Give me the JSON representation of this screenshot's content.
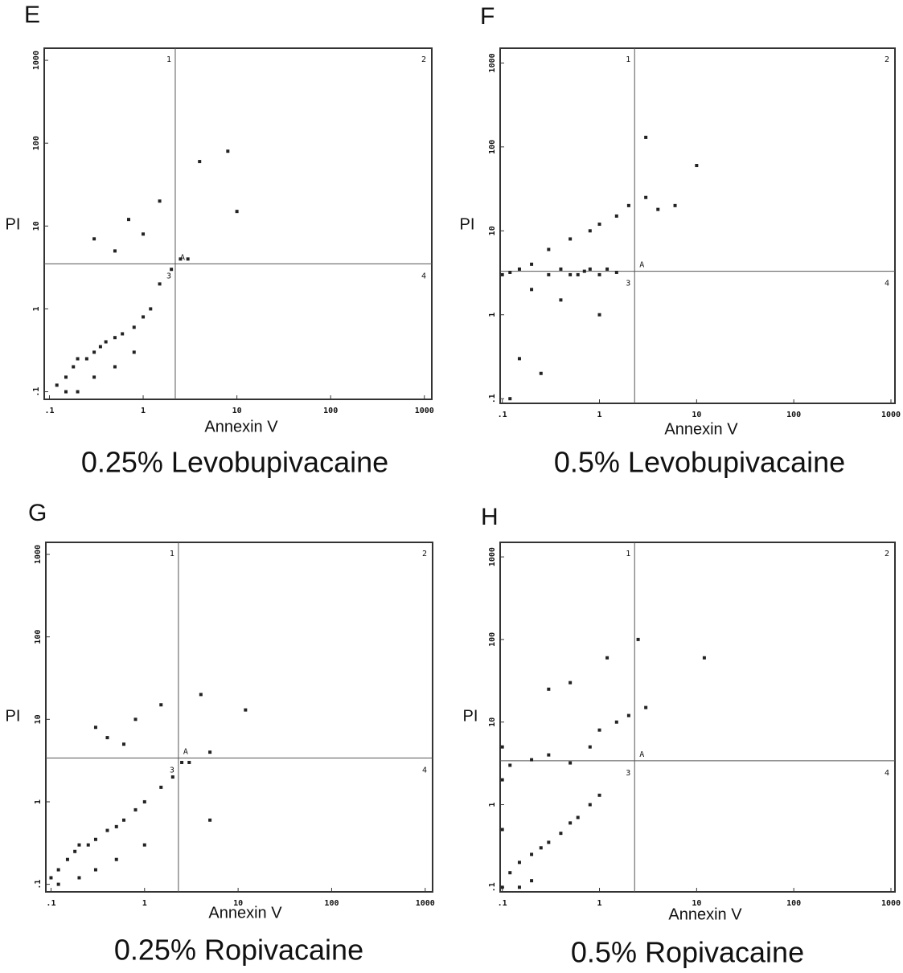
{
  "chart_data": [
    {
      "type": "scatter",
      "panel_label": "E",
      "title": "0.25% Levobupivacaine",
      "x_label": "Annexin V",
      "y_label": "PI",
      "log_x": true,
      "log_y": true,
      "xlim": [
        0.088,
        1200
      ],
      "ylim": [
        0.081,
        1400
      ],
      "xticks": [
        {
          "value": 0.1,
          "label": ".1"
        },
        1,
        10,
        100,
        1000
      ],
      "yticks": [
        {
          "value": 0.1,
          "label": ".1"
        },
        1,
        10,
        100,
        1000
      ],
      "quadrant": {
        "x": 2.2,
        "y": 3.5
      },
      "quadrant_labels": {
        "upper_left": "1",
        "upper_right": "2",
        "lower_left": "3",
        "lower_right": "4",
        "center": "A"
      },
      "color": "#222222",
      "x": [
        0.12,
        0.15,
        0.18,
        0.2,
        0.25,
        0.3,
        0.35,
        0.4,
        0.5,
        0.6,
        0.8,
        1.0,
        1.2,
        0.15,
        0.2,
        0.3,
        0.5,
        0.8,
        1.5,
        2,
        3,
        0.5,
        1,
        4,
        8,
        10,
        0.3,
        0.7,
        1.5,
        2.5
      ],
      "values": [
        0.12,
        0.15,
        0.2,
        0.25,
        0.25,
        0.3,
        0.35,
        0.4,
        0.45,
        0.5,
        0.6,
        0.8,
        1,
        0.1,
        0.1,
        0.15,
        0.2,
        0.3,
        2,
        3,
        4,
        5,
        8,
        60,
        80,
        15,
        7,
        12,
        20,
        4
      ]
    },
    {
      "type": "scatter",
      "panel_label": "F",
      "title": "0.5% Levobupivacaine",
      "x_label": "Annexin V",
      "y_label": "PI",
      "log_x": true,
      "log_y": true,
      "xlim": [
        0.095,
        1100
      ],
      "ylim": [
        0.088,
        1500
      ],
      "xticks": [
        {
          "value": 0.1,
          "label": ".1"
        },
        1,
        10,
        100,
        1000
      ],
      "yticks": [
        {
          "value": 0.1,
          "label": ".1"
        },
        1,
        10,
        100,
        1000
      ],
      "quadrant": {
        "x": 2.3,
        "y": 3.3
      },
      "quadrant_labels": {
        "upper_left": "1",
        "upper_right": "2",
        "lower_left": "3",
        "lower_right": "4",
        "center": "A"
      },
      "color": "#222222",
      "x": [
        0.1,
        0.12,
        0.15,
        0.2,
        0.3,
        0.4,
        0.5,
        0.6,
        0.7,
        0.8,
        1,
        1.2,
        1.5,
        0.3,
        0.5,
        0.8,
        1,
        1.5,
        2,
        3,
        4,
        6,
        0.2,
        0.4,
        0.15,
        0.25,
        1,
        3,
        10,
        0.12
      ],
      "values": [
        3,
        3.2,
        3.5,
        4,
        3,
        3.5,
        3,
        3,
        3.3,
        3.5,
        3,
        3.5,
        3.2,
        6,
        8,
        10,
        12,
        15,
        20,
        25,
        18,
        20,
        2,
        1.5,
        0.3,
        0.2,
        1,
        130,
        60,
        0.1
      ]
    },
    {
      "type": "scatter",
      "panel_label": "G",
      "title": "0.25% Ropivacaine",
      "x_label": "Annexin V",
      "y_label": "PI",
      "log_x": true,
      "log_y": true,
      "xlim": [
        0.088,
        1200
      ],
      "ylim": [
        0.081,
        1400
      ],
      "xticks": [
        {
          "value": 0.1,
          "label": ".1"
        },
        1,
        10,
        100,
        1000
      ],
      "yticks": [
        {
          "value": 0.1,
          "label": ".1"
        },
        1,
        10,
        100,
        1000
      ],
      "quadrant": {
        "x": 2.3,
        "y": 3.4
      },
      "quadrant_labels": {
        "upper_left": "1",
        "upper_right": "2",
        "lower_left": "3",
        "lower_right": "4",
        "center": "A"
      },
      "color": "#222222",
      "x": [
        0.1,
        0.12,
        0.15,
        0.18,
        0.2,
        0.25,
        0.3,
        0.4,
        0.5,
        0.6,
        0.8,
        1,
        1.5,
        0.12,
        0.2,
        0.3,
        0.5,
        1,
        2,
        3,
        5,
        0.4,
        0.8,
        1.5,
        4,
        12,
        0.3,
        0.6,
        2.5,
        5
      ],
      "values": [
        0.12,
        0.15,
        0.2,
        0.25,
        0.3,
        0.3,
        0.35,
        0.45,
        0.5,
        0.6,
        0.8,
        1,
        1.5,
        0.1,
        0.12,
        0.15,
        0.2,
        0.3,
        2,
        3,
        4,
        6,
        10,
        15,
        20,
        13,
        8,
        5,
        3,
        0.6
      ]
    },
    {
      "type": "scatter",
      "panel_label": "H",
      "title": "0.5% Ropivacaine",
      "x_label": "Annexin V",
      "y_label": "PI",
      "log_x": true,
      "log_y": true,
      "xlim": [
        0.095,
        1100
      ],
      "ylim": [
        0.088,
        1500
      ],
      "xticks": [
        {
          "value": 0.1,
          "label": ".1"
        },
        1,
        10,
        100,
        1000
      ],
      "yticks": [
        {
          "value": 0.1,
          "label": ".1"
        },
        1,
        10,
        100,
        1000
      ],
      "quadrant": {
        "x": 2.3,
        "y": 3.4
      },
      "quadrant_labels": {
        "upper_left": "1",
        "upper_right": "2",
        "lower_left": "3",
        "lower_right": "4",
        "center": "A"
      },
      "color": "#222222",
      "x": [
        0.1,
        0.1,
        0.1,
        0.1,
        0.12,
        0.15,
        0.2,
        0.25,
        0.3,
        0.4,
        0.5,
        0.6,
        0.8,
        1,
        0.12,
        0.2,
        0.3,
        0.5,
        0.8,
        1,
        1.5,
        2,
        3,
        0.3,
        0.5,
        1.2,
        2.5,
        12,
        0.15,
        0.2
      ],
      "values": [
        0.1,
        0.5,
        2,
        5,
        0.15,
        0.2,
        0.25,
        0.3,
        0.35,
        0.45,
        0.6,
        0.7,
        1,
        1.3,
        3,
        3.5,
        4,
        3.2,
        5,
        8,
        10,
        12,
        15,
        25,
        30,
        60,
        100,
        60,
        0.1,
        0.12
      ]
    }
  ]
}
